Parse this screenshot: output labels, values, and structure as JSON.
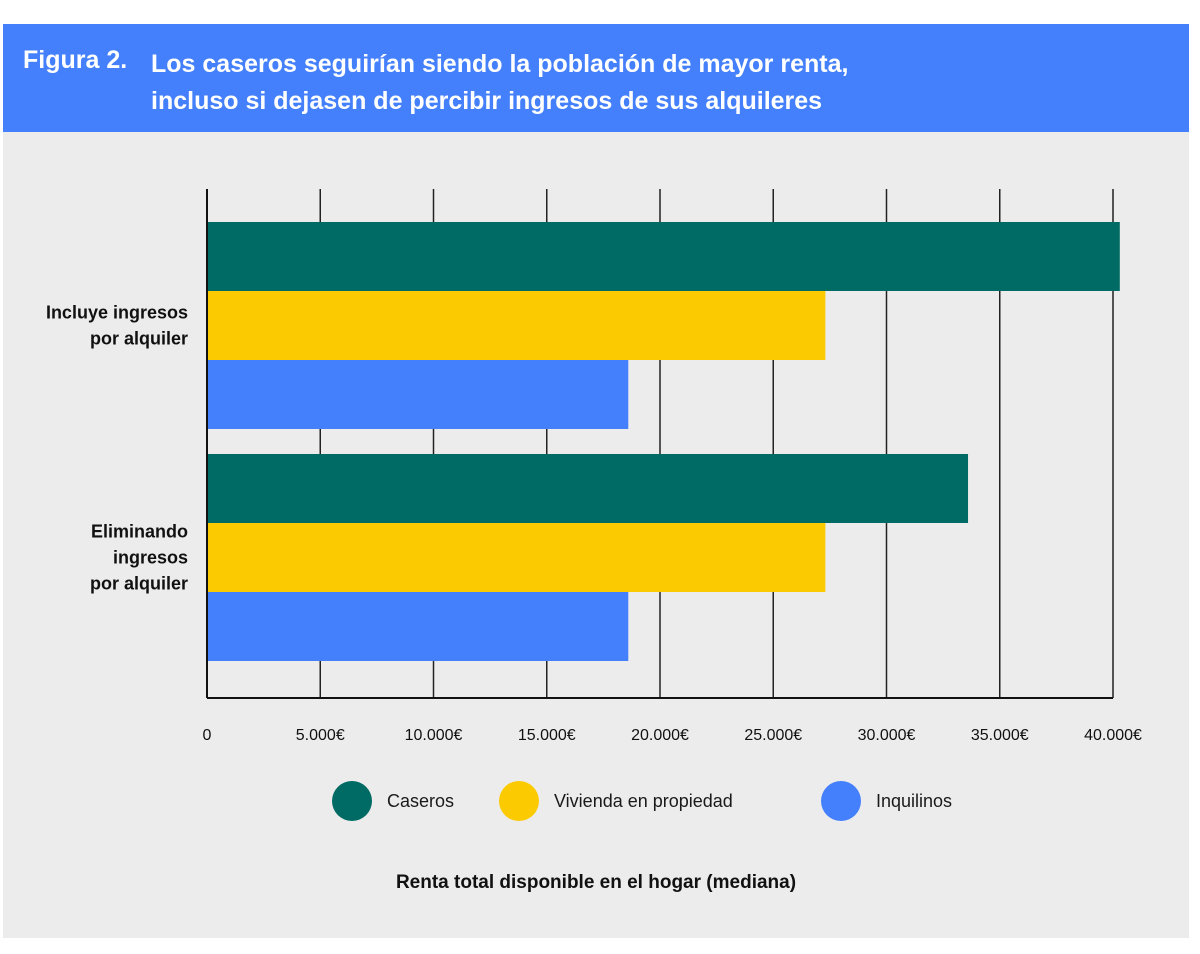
{
  "figure": {
    "label": "Figura 2.",
    "title_line1": "Los caseros seguirían siendo la población de mayor renta,",
    "title_line2": "incluso si dejasen de percibir ingresos de sus alquileres"
  },
  "colors": {
    "header_bg": "#4580fc",
    "panel_bg": "#ececec",
    "caseros": "#006a64",
    "vivienda": "#fcca01",
    "inquilinos": "#4580fc",
    "grid": "#222222"
  },
  "legend": [
    {
      "label": "Caseros",
      "color": "#006a64"
    },
    {
      "label": "Vivienda en propiedad",
      "color": "#fcca01"
    },
    {
      "label": "Inquilinos",
      "color": "#4580fc"
    }
  ],
  "chart_data": {
    "type": "bar",
    "orientation": "horizontal",
    "categories": [
      [
        "Incluye ingresos",
        "por alquiler"
      ],
      [
        "Eliminando",
        "ingresos",
        "por alquiler"
      ]
    ],
    "series": [
      {
        "name": "Caseros",
        "color": "#006a64",
        "values": [
          40300,
          33600
        ]
      },
      {
        "name": "Vivienda en propiedad",
        "color": "#fcca01",
        "values": [
          27300,
          27300
        ]
      },
      {
        "name": "Inquilinos",
        "color": "#4580fc",
        "values": [
          18600,
          18600
        ]
      }
    ],
    "xlim": [
      0,
      40000
    ],
    "x_ticks": [
      0,
      5000,
      10000,
      15000,
      20000,
      25000,
      30000,
      35000,
      40000
    ],
    "x_tick_labels": [
      "0",
      "5.000€",
      "10.000€",
      "15.000€",
      "20.000€",
      "25.000€",
      "30.000€",
      "35.000€",
      "40.000€"
    ],
    "xlabel": "Renta total disponible en el hogar (mediana)",
    "grid": true,
    "legend_position": "bottom"
  }
}
